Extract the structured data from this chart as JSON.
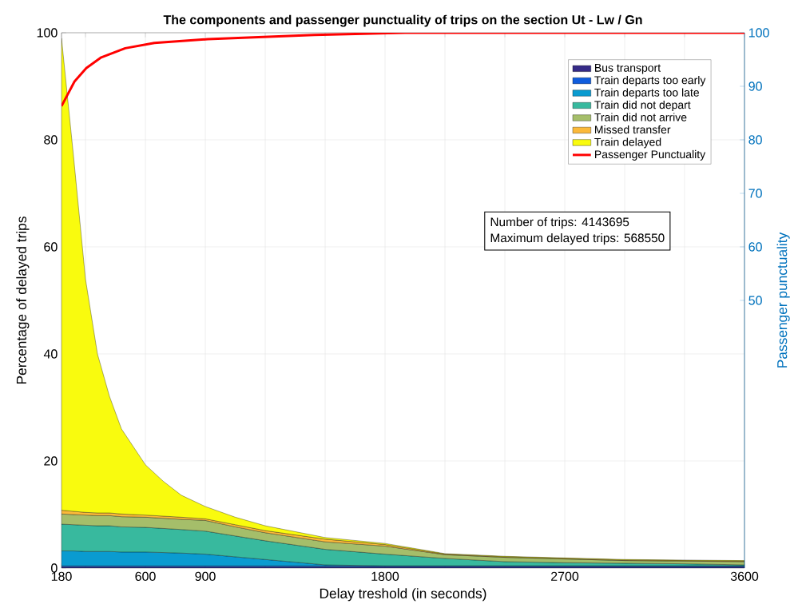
{
  "chart_data": {
    "type": "area",
    "stacked": true,
    "title": "The components and passenger punctuality of trips on the section Ut - Lw / Gn",
    "xlabel": "Delay treshold (in seconds)",
    "ylabel": "Percentage of delayed trips",
    "y2label": "Passenger punctuality",
    "x": [
      180,
      240,
      300,
      360,
      420,
      480,
      600,
      690,
      780,
      900,
      1050,
      1200,
      1500,
      1800,
      2100,
      2400,
      2700,
      3000,
      3300,
      3600
    ],
    "xlim": [
      180,
      3600
    ],
    "xticks": [
      180,
      {
        "value": 300,
        "label": null
      },
      600,
      900,
      {
        "value": 1200,
        "label": null
      },
      {
        "value": 1500,
        "label": null
      },
      1800,
      {
        "value": 2100,
        "label": null
      },
      {
        "value": 2400,
        "label": null
      },
      2700,
      {
        "value": 3000,
        "label": null
      },
      {
        "value": 3300,
        "label": null
      },
      3600
    ],
    "ylim": [
      0,
      100
    ],
    "yticks": [
      0,
      20,
      40,
      60,
      80,
      100
    ],
    "y2lim": [
      0,
      100
    ],
    "y2ticks": [
      50,
      60,
      70,
      80,
      90,
      100
    ],
    "grid": true,
    "legend": "top right",
    "marker": "none",
    "line_style": "solid",
    "annotations": [
      "Number of trips: 4143695",
      "Maximum delayed trips: 568550"
    ],
    "series": [
      {
        "name": "Bus transport",
        "color": "#352a87",
        "values": [
          0.2,
          0.2,
          0.2,
          0.2,
          0.2,
          0.2,
          0.2,
          0.2,
          0.2,
          0.2,
          0.2,
          0.2,
          0.2,
          0.2,
          0.2,
          0.2,
          0.2,
          0.2,
          0.2,
          0.2
        ]
      },
      {
        "name": "Train departs too early",
        "color": "#0f5cdd",
        "values": [
          0.2,
          0.2,
          0.2,
          0.2,
          0.2,
          0.2,
          0.2,
          0.2,
          0.2,
          0.2,
          0.2,
          0.2,
          0.2,
          0.2,
          0.2,
          0.2,
          0.2,
          0.2,
          0.2,
          0.2
        ]
      },
      {
        "name": "Train departs too late",
        "color": "#0a9bd0",
        "values": [
          2.8,
          2.8,
          2.7,
          2.7,
          2.7,
          2.6,
          2.6,
          2.5,
          2.4,
          2.2,
          1.7,
          1.2,
          0.2,
          0,
          0,
          0,
          0,
          0,
          0,
          0
        ]
      },
      {
        "name": "Train did not depart",
        "color": "#38b99e",
        "values": [
          5.0,
          4.9,
          4.9,
          4.8,
          4.8,
          4.7,
          4.6,
          4.5,
          4.4,
          4.3,
          3.9,
          3.5,
          2.9,
          2.2,
          1.4,
          0.8,
          0.6,
          0.5,
          0.4,
          0.2
        ]
      },
      {
        "name": "Train did not arrive",
        "color": "#a5be6a",
        "values": [
          1.9,
          1.9,
          1.9,
          1.9,
          1.9,
          1.9,
          1.9,
          1.9,
          1.9,
          2.0,
          1.7,
          1.5,
          1.4,
          1.5,
          0.7,
          0.8,
          0.7,
          0.5,
          0.5,
          0.6
        ]
      },
      {
        "name": "Missed transfer",
        "color": "#fbb93a",
        "values": [
          0.7,
          0.6,
          0.5,
          0.5,
          0.5,
          0.5,
          0.4,
          0.4,
          0.4,
          0.3,
          0.4,
          0.4,
          0.5,
          0.3,
          0.1,
          0.1,
          0.1,
          0.1,
          0.1,
          0.1
        ]
      },
      {
        "name": "Train delayed",
        "color": "#f9fb0e",
        "values": [
          88.2,
          66.4,
          43.6,
          29.7,
          21.8,
          15.9,
          9.4,
          6.5,
          4.1,
          2.3,
          1.4,
          0.9,
          0.3,
          0.2,
          0.1,
          0.1,
          0.1,
          0.1,
          0.1,
          0.1
        ]
      },
      {
        "name": "Passenger Punctuality",
        "type": "line",
        "axis": "y2",
        "color": "#ff0000",
        "x": [
          180,
          245,
          304,
          379,
          499,
          645,
          912,
          1445,
          1900,
          3600
        ],
        "values": [
          86.3,
          90.9,
          93.4,
          95.4,
          97.1,
          98.1,
          98.8,
          99.6,
          100,
          100
        ]
      }
    ]
  }
}
